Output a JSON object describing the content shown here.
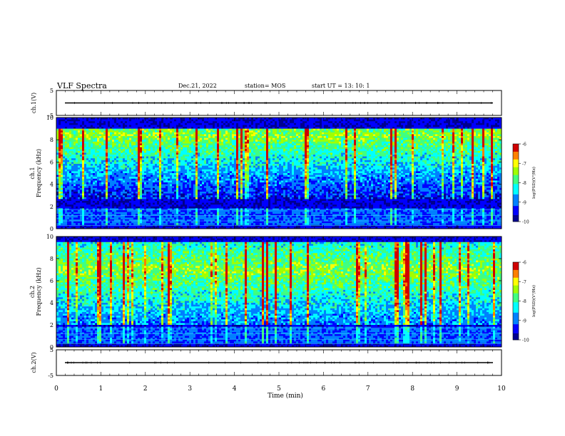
{
  "header": {
    "title": "VLF Spectra",
    "date": "Dec.21, 2022",
    "station": "station= MOS",
    "start_ut": "start UT =  13: 10: 1"
  },
  "chart_data": [
    {
      "type": "line",
      "panel": "ch1-waveform",
      "ylabel": "ch.1(V)",
      "yticks": [
        "5",
        "-5"
      ],
      "ylim": [
        -5,
        5
      ],
      "signal_level": 0
    },
    {
      "type": "heatmap",
      "panel": "ch1-spectrogram",
      "ylabel_top": "ch.1",
      "ylabel": "Frequency (kHz)",
      "yticks": [
        "0",
        "2",
        "4",
        "6",
        "8",
        "10"
      ],
      "ylim": [
        0,
        10
      ],
      "xlim": [
        0,
        10
      ],
      "colorbar": {
        "label": "log(PSD)(V²/Hz)",
        "ticks": [
          "-6",
          "-7",
          "-8",
          "-9",
          "-10"
        ],
        "range": [
          -10,
          -6
        ]
      },
      "band_khz": [
        2.7,
        9.0
      ],
      "peak_khz": 8.4
    },
    {
      "type": "heatmap",
      "panel": "ch2-spectrogram",
      "ylabel_top": "ch.2",
      "ylabel": "Frequency (kHz)",
      "yticks": [
        "0",
        "2",
        "4",
        "6",
        "8",
        "10"
      ],
      "ylim": [
        0,
        10
      ],
      "xlim": [
        0,
        10
      ],
      "colorbar": {
        "label": "log(PSD)(V²/Hz)",
        "ticks": [
          "-6",
          "-7",
          "-8",
          "-9",
          "-10"
        ],
        "range": [
          -10,
          -6
        ]
      },
      "band_khz": [
        2.0,
        9.5
      ],
      "peak_khz": 7.0
    },
    {
      "type": "line",
      "panel": "ch2-waveform",
      "ylabel": "ch.2(V)",
      "yticks": [
        "5",
        "-5"
      ],
      "ylim": [
        -5,
        5
      ],
      "signal_level": 0,
      "xlabel": "Time (min)",
      "xticks": [
        "0",
        "1",
        "2",
        "3",
        "4",
        "5",
        "6",
        "7",
        "8",
        "9",
        "10"
      ],
      "xlim": [
        0,
        10
      ]
    }
  ]
}
